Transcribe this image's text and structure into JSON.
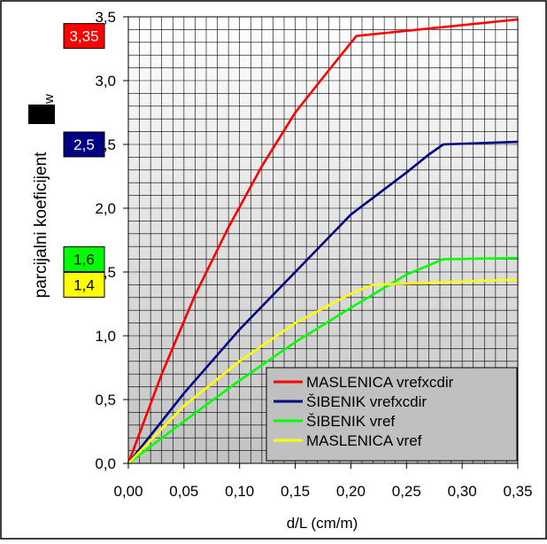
{
  "chart_data": {
    "type": "line",
    "title": "",
    "xlabel": "d/L (cm/m)",
    "ylabel": "parcijalni koeficijent",
    "ylabel_subscript": "w",
    "xlim": [
      0,
      0.35
    ],
    "ylim": [
      0,
      3.5
    ],
    "x_ticks": [
      "0,00",
      "0,05",
      "0,10",
      "0,15",
      "0,20",
      "0,25",
      "0,30",
      "0,35"
    ],
    "y_ticks": [
      "0,0",
      "0,5",
      "1,0",
      "1,5",
      "2,0",
      "2,5",
      "3,0",
      "3,5"
    ],
    "grid": true,
    "background": "gradient white to gray",
    "legend_position": "bottom-right",
    "series": [
      {
        "name": "MASLENICA vrefxcdir",
        "color": "#ff0000",
        "points": [
          [
            0,
            0
          ],
          [
            0.03,
            0.7
          ],
          [
            0.06,
            1.32
          ],
          [
            0.09,
            1.85
          ],
          [
            0.12,
            2.33
          ],
          [
            0.15,
            2.75
          ],
          [
            0.18,
            3.08
          ],
          [
            0.205,
            3.35
          ],
          [
            0.35,
            3.48
          ]
        ]
      },
      {
        "name": "ŠIBENIK vrefxcdir",
        "color": "#000080",
        "points": [
          [
            0,
            0
          ],
          [
            0.05,
            0.55
          ],
          [
            0.1,
            1.05
          ],
          [
            0.15,
            1.5
          ],
          [
            0.2,
            1.95
          ],
          [
            0.25,
            2.28
          ],
          [
            0.27,
            2.42
          ],
          [
            0.283,
            2.5
          ],
          [
            0.35,
            2.52
          ]
        ]
      },
      {
        "name": "ŠIBENIK vref",
        "color": "#00ff00",
        "points": [
          [
            0,
            0
          ],
          [
            0.05,
            0.33
          ],
          [
            0.1,
            0.65
          ],
          [
            0.15,
            0.95
          ],
          [
            0.2,
            1.22
          ],
          [
            0.25,
            1.48
          ],
          [
            0.283,
            1.6
          ],
          [
            0.35,
            1.61
          ]
        ]
      },
      {
        "name": "MASLENICA vref",
        "color": "#ffff00",
        "points": [
          [
            0,
            0
          ],
          [
            0.05,
            0.45
          ],
          [
            0.1,
            0.8
          ],
          [
            0.15,
            1.1
          ],
          [
            0.2,
            1.33
          ],
          [
            0.22,
            1.4
          ],
          [
            0.25,
            1.41
          ],
          [
            0.35,
            1.44
          ]
        ]
      }
    ],
    "value_labels": [
      {
        "text": "3,35",
        "value": 3.35,
        "fill": "#ff0000",
        "text_color": "#ffffff"
      },
      {
        "text": "2,5",
        "value": 2.5,
        "fill": "#000080",
        "text_color": "#ffffff"
      },
      {
        "text": "1,6",
        "value": 1.6,
        "fill": "#00ff00",
        "text_color": "#000000"
      },
      {
        "text": "1,4",
        "value": 1.4,
        "fill": "#ffff00",
        "text_color": "#000000"
      }
    ]
  }
}
